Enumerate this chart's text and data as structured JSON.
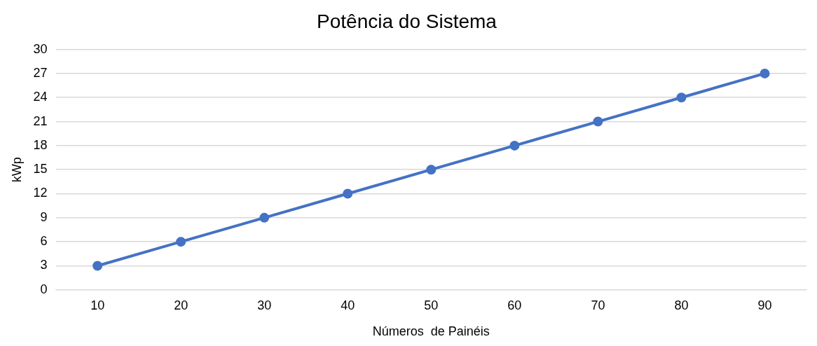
{
  "chart_data": {
    "type": "line",
    "title": "Potência do Sistema",
    "xlabel": "Números  de Painéis",
    "ylabel": "kWp",
    "categories": [
      "10",
      "20",
      "30",
      "40",
      "50",
      "60",
      "70",
      "80",
      "90"
    ],
    "series": [
      {
        "color": "#4472c4",
        "values": [
          3,
          6,
          9,
          12,
          15,
          18,
          21,
          24,
          27
        ]
      }
    ],
    "ylim": [
      0,
      30
    ],
    "yticks": [
      0,
      3,
      6,
      9,
      12,
      15,
      18,
      21,
      24,
      27,
      30
    ],
    "grid": "y",
    "legend": false,
    "marker": "circle",
    "line_style": "solid"
  }
}
